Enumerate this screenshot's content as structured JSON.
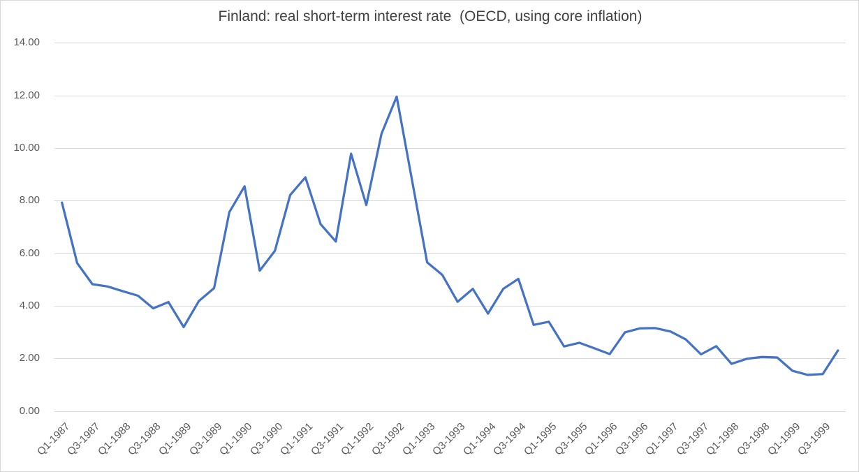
{
  "chart_data": {
    "type": "line",
    "title": "Finland: real short-term interest rate  (OECD, using core inflation)",
    "xlabel": "",
    "ylabel": "",
    "categories": [
      "Q1-1987",
      "Q2-1987",
      "Q3-1987",
      "Q4-1987",
      "Q1-1988",
      "Q2-1988",
      "Q3-1988",
      "Q4-1988",
      "Q1-1989",
      "Q2-1989",
      "Q3-1989",
      "Q4-1989",
      "Q1-1990",
      "Q2-1990",
      "Q3-1990",
      "Q4-1990",
      "Q1-1991",
      "Q2-1991",
      "Q3-1991",
      "Q4-1991",
      "Q1-1992",
      "Q2-1992",
      "Q3-1992",
      "Q4-1992",
      "Q1-1993",
      "Q2-1993",
      "Q3-1993",
      "Q4-1993",
      "Q1-1994",
      "Q2-1994",
      "Q3-1994",
      "Q4-1994",
      "Q1-1995",
      "Q2-1995",
      "Q3-1995",
      "Q4-1995",
      "Q1-1996",
      "Q2-1996",
      "Q3-1996",
      "Q4-1996",
      "Q1-1997",
      "Q2-1997",
      "Q3-1997",
      "Q4-1997",
      "Q1-1998",
      "Q2-1998",
      "Q3-1998",
      "Q4-1998",
      "Q1-1999",
      "Q2-1999",
      "Q3-1999",
      "Q4-1999"
    ],
    "values": [
      7.92,
      5.62,
      4.82,
      4.73,
      4.55,
      4.38,
      3.9,
      4.14,
      3.19,
      4.18,
      4.67,
      7.56,
      8.54,
      5.33,
      6.09,
      8.21,
      8.88,
      7.1,
      6.44,
      9.78,
      7.83,
      10.54,
      11.95,
      8.8,
      5.65,
      5.17,
      4.15,
      4.64,
      3.7,
      4.64,
      5.02,
      3.27,
      3.39,
      2.45,
      2.59,
      2.38,
      2.16,
      2.99,
      3.14,
      3.15,
      3.02,
      2.72,
      2.15,
      2.46,
      1.79,
      1.98,
      2.05,
      2.03,
      1.53,
      1.37,
      1.4,
      2.3
    ],
    "x_tick_labels": [
      "Q1-1987",
      "Q3-1987",
      "Q1-1988",
      "Q3-1988",
      "Q1-1989",
      "Q3-1989",
      "Q1-1990",
      "Q3-1990",
      "Q1-1991",
      "Q3-1991",
      "Q1-1992",
      "Q3-1992",
      "Q1-1993",
      "Q3-1993",
      "Q1-1994",
      "Q3-1994",
      "Q1-1995",
      "Q3-1995",
      "Q1-1996",
      "Q3-1996",
      "Q1-1997",
      "Q3-1997",
      "Q1-1998",
      "Q3-1998",
      "Q1-1999",
      "Q3-1999"
    ],
    "x_tick_every": 2,
    "y_tick_labels": [
      "0.00",
      "2.00",
      "4.00",
      "6.00",
      "8.00",
      "10.00",
      "12.00",
      "14.00"
    ],
    "y_tick_values": [
      0,
      2,
      4,
      6,
      8,
      10,
      12,
      14
    ],
    "ylim": [
      0,
      14
    ],
    "grid": true,
    "legend": false,
    "line_color": "#4472C4",
    "gridline_color": "#D9D9D9",
    "axis_text_color": "#595959",
    "title_color": "#404040",
    "background": "#FFFFFF"
  }
}
